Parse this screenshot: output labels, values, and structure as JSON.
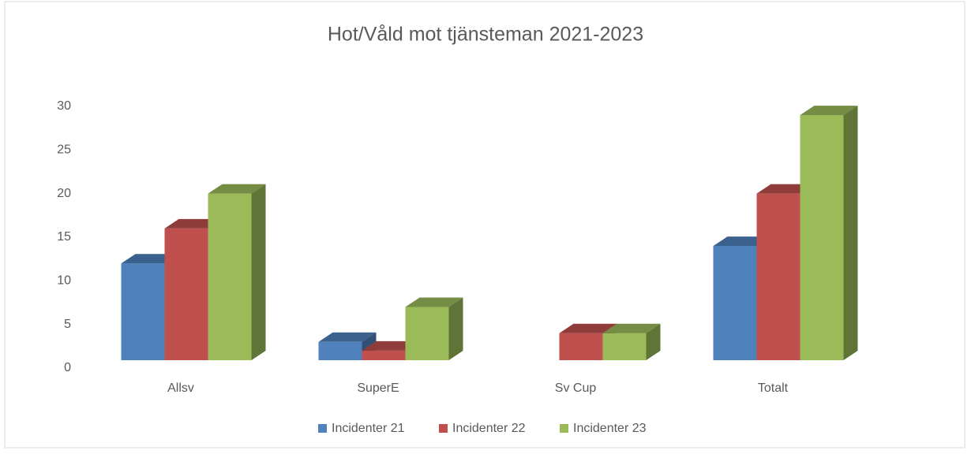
{
  "chart_data": {
    "type": "bar3d",
    "title": "Hot/Våld mot tjänsteman 2021-2023",
    "categories": [
      "Allsv",
      "SuperE",
      "Sv Cup",
      "Totalt"
    ],
    "series": [
      {
        "name": "Incidenter 21",
        "color": "#4f81bd",
        "values": [
          12,
          3,
          0,
          14
        ]
      },
      {
        "name": "Incidenter 22",
        "color": "#c0504d",
        "values": [
          16,
          2,
          4,
          20
        ]
      },
      {
        "name": "Incidenter 23",
        "color": "#9bbb59",
        "values": [
          20,
          7,
          4,
          29
        ]
      }
    ],
    "ylim": [
      0,
      30
    ],
    "yticks": [
      0,
      5,
      10,
      15,
      20,
      25,
      30
    ],
    "grid": false,
    "legend": "bottom"
  }
}
